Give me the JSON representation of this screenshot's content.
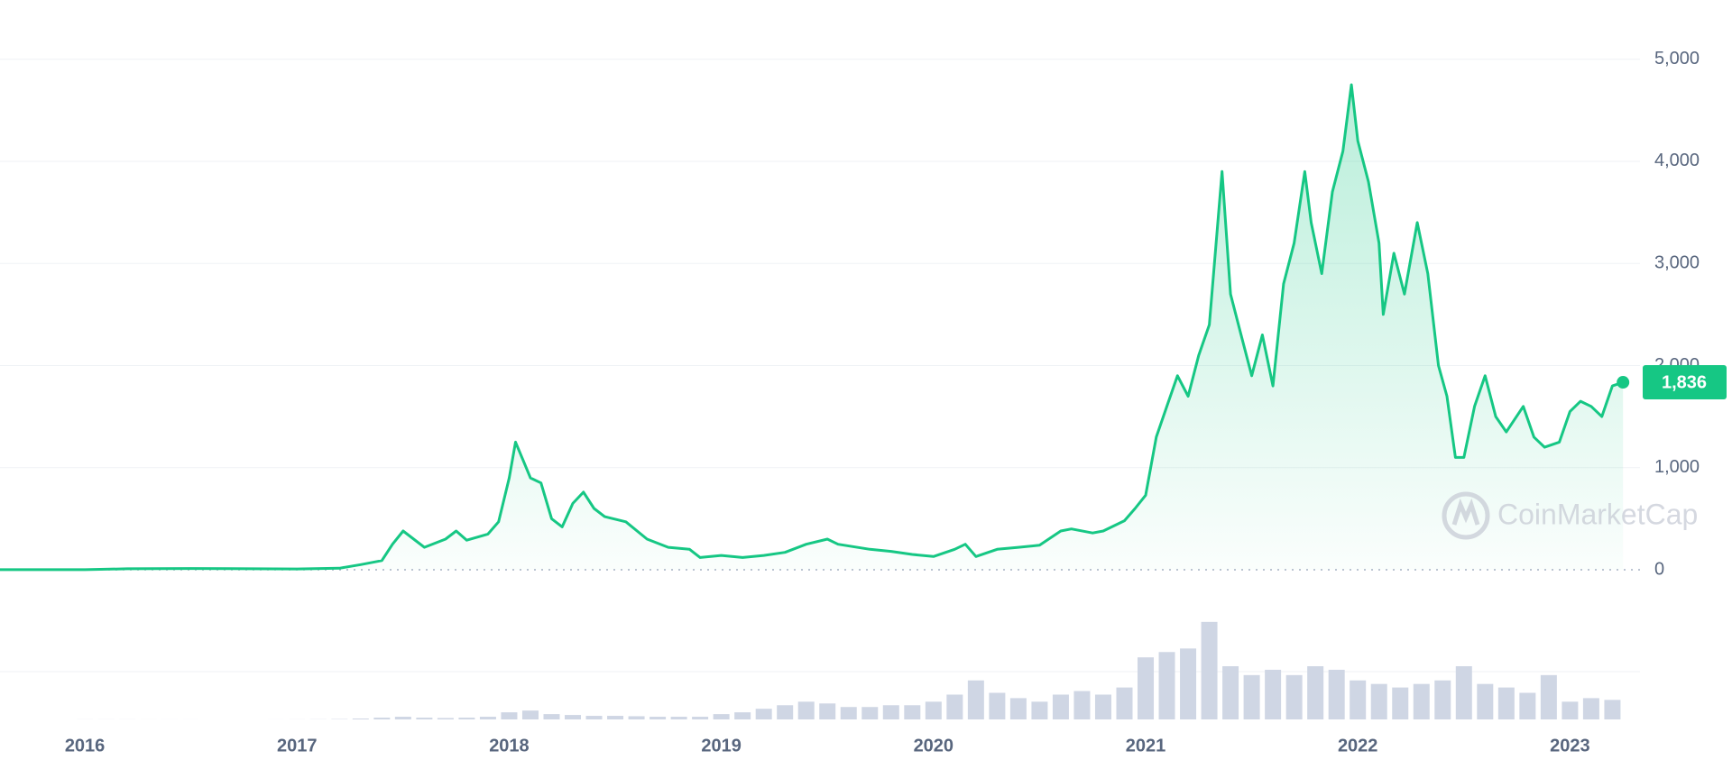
{
  "chart_data": {
    "type": "line",
    "x": [
      2015.6,
      2016.0,
      2016.2,
      2016.5,
      2017.0,
      2017.2,
      2017.3,
      2017.4,
      2017.45,
      2017.5,
      2017.55,
      2017.6,
      2017.7,
      2017.75,
      2017.8,
      2017.85,
      2017.9,
      2017.95,
      2018.0,
      2018.03,
      2018.06,
      2018.1,
      2018.15,
      2018.2,
      2018.25,
      2018.3,
      2018.35,
      2018.4,
      2018.45,
      2018.55,
      2018.65,
      2018.75,
      2018.85,
      2018.9,
      2019.0,
      2019.1,
      2019.2,
      2019.3,
      2019.4,
      2019.5,
      2019.55,
      2019.7,
      2019.8,
      2019.9,
      2020.0,
      2020.1,
      2020.15,
      2020.2,
      2020.3,
      2020.4,
      2020.5,
      2020.6,
      2020.65,
      2020.75,
      2020.8,
      2020.9,
      2020.95,
      2021.0,
      2021.05,
      2021.1,
      2021.15,
      2021.2,
      2021.25,
      2021.3,
      2021.36,
      2021.4,
      2021.45,
      2021.5,
      2021.55,
      2021.6,
      2021.65,
      2021.7,
      2021.75,
      2021.78,
      2021.83,
      2021.88,
      2021.93,
      2021.97,
      2022.0,
      2022.05,
      2022.1,
      2022.12,
      2022.17,
      2022.22,
      2022.28,
      2022.33,
      2022.38,
      2022.42,
      2022.46,
      2022.5,
      2022.55,
      2022.6,
      2022.65,
      2022.7,
      2022.78,
      2022.83,
      2022.88,
      2022.95,
      2023.0,
      2023.05,
      2023.1,
      2023.15,
      2023.2,
      2023.25
    ],
    "series": [
      {
        "color": "#16c784",
        "values": [
          1,
          1,
          10,
          12,
          8,
          15,
          50,
          90,
          250,
          380,
          300,
          220,
          300,
          380,
          290,
          320,
          350,
          470,
          900,
          1250,
          1100,
          900,
          850,
          500,
          420,
          650,
          760,
          600,
          520,
          470,
          300,
          220,
          200,
          120,
          140,
          120,
          140,
          170,
          250,
          300,
          250,
          200,
          180,
          150,
          130,
          200,
          250,
          130,
          200,
          220,
          240,
          380,
          400,
          360,
          380,
          480,
          600,
          730,
          1300,
          1600,
          1900,
          1700,
          2100,
          2400,
          3900,
          2700,
          2300,
          1900,
          2300,
          1800,
          2800,
          3200,
          3900,
          3400,
          2900,
          3700,
          4100,
          4750,
          4200,
          3800,
          3200,
          2500,
          3100,
          2700,
          3400,
          2900,
          2000,
          1700,
          1100,
          1100,
          1600,
          1900,
          1500,
          1350,
          1600,
          1300,
          1200,
          1250,
          1550,
          1650,
          1600,
          1500,
          1800,
          1836
        ]
      }
    ],
    "xlim": [
      2015.6,
      2023.33
    ],
    "xticks": [
      2016,
      2017,
      2018,
      2019,
      2020,
      2021,
      2022,
      2023
    ],
    "ylim": [
      0,
      5580
    ],
    "yticks": [
      0,
      {
        "value": 1000,
        "label": "1,000"
      },
      {
        "value": 2000,
        "label": "2,000"
      },
      {
        "value": 3000,
        "label": "3,000"
      },
      {
        "value": 4000,
        "label": "4,000"
      },
      {
        "value": 5000,
        "label": "5,000"
      }
    ],
    "grid": true,
    "current_price": 1836,
    "current_price_label": "1,836",
    "watermark": "CoinMarketCap",
    "volume": {
      "color": "#cfd6e4",
      "ylim": [
        0,
        60
      ],
      "x": [
        2015.7,
        2015.8,
        2015.9,
        2016.0,
        2016.1,
        2016.2,
        2016.3,
        2016.4,
        2016.5,
        2016.6,
        2016.7,
        2016.8,
        2016.9,
        2017.0,
        2017.1,
        2017.2,
        2017.3,
        2017.4,
        2017.5,
        2017.6,
        2017.7,
        2017.8,
        2017.9,
        2018.0,
        2018.1,
        2018.2,
        2018.3,
        2018.4,
        2018.5,
        2018.6,
        2018.7,
        2018.8,
        2018.9,
        2019.0,
        2019.1,
        2019.2,
        2019.3,
        2019.4,
        2019.5,
        2019.6,
        2019.7,
        2019.8,
        2019.9,
        2020.0,
        2020.1,
        2020.2,
        2020.3,
        2020.4,
        2020.5,
        2020.6,
        2020.7,
        2020.8,
        2020.9,
        2021.0,
        2021.1,
        2021.2,
        2021.3,
        2021.4,
        2021.5,
        2021.6,
        2021.7,
        2021.8,
        2021.9,
        2022.0,
        2022.1,
        2022.2,
        2022.3,
        2022.4,
        2022.5,
        2022.6,
        2022.7,
        2022.8,
        2022.9,
        2023.0,
        2023.1,
        2023.2
      ],
      "values": [
        0.01,
        0.01,
        0.02,
        0.05,
        0.05,
        0.05,
        0.04,
        0.03,
        0.03,
        0.02,
        0.02,
        0.02,
        0.03,
        0.05,
        0.1,
        0.2,
        0.5,
        1,
        1.5,
        1,
        0.8,
        1,
        1.5,
        4,
        5,
        3,
        2.5,
        2,
        2,
        1.8,
        1.5,
        1.5,
        1.5,
        3,
        4,
        6,
        8,
        10,
        9,
        7,
        7,
        8,
        8,
        10,
        14,
        22,
        15,
        12,
        10,
        14,
        16,
        14,
        18,
        35,
        38,
        40,
        55,
        30,
        25,
        28,
        25,
        30,
        28,
        22,
        20,
        18,
        20,
        22,
        30,
        20,
        18,
        15,
        25,
        10,
        12,
        11
      ]
    }
  }
}
